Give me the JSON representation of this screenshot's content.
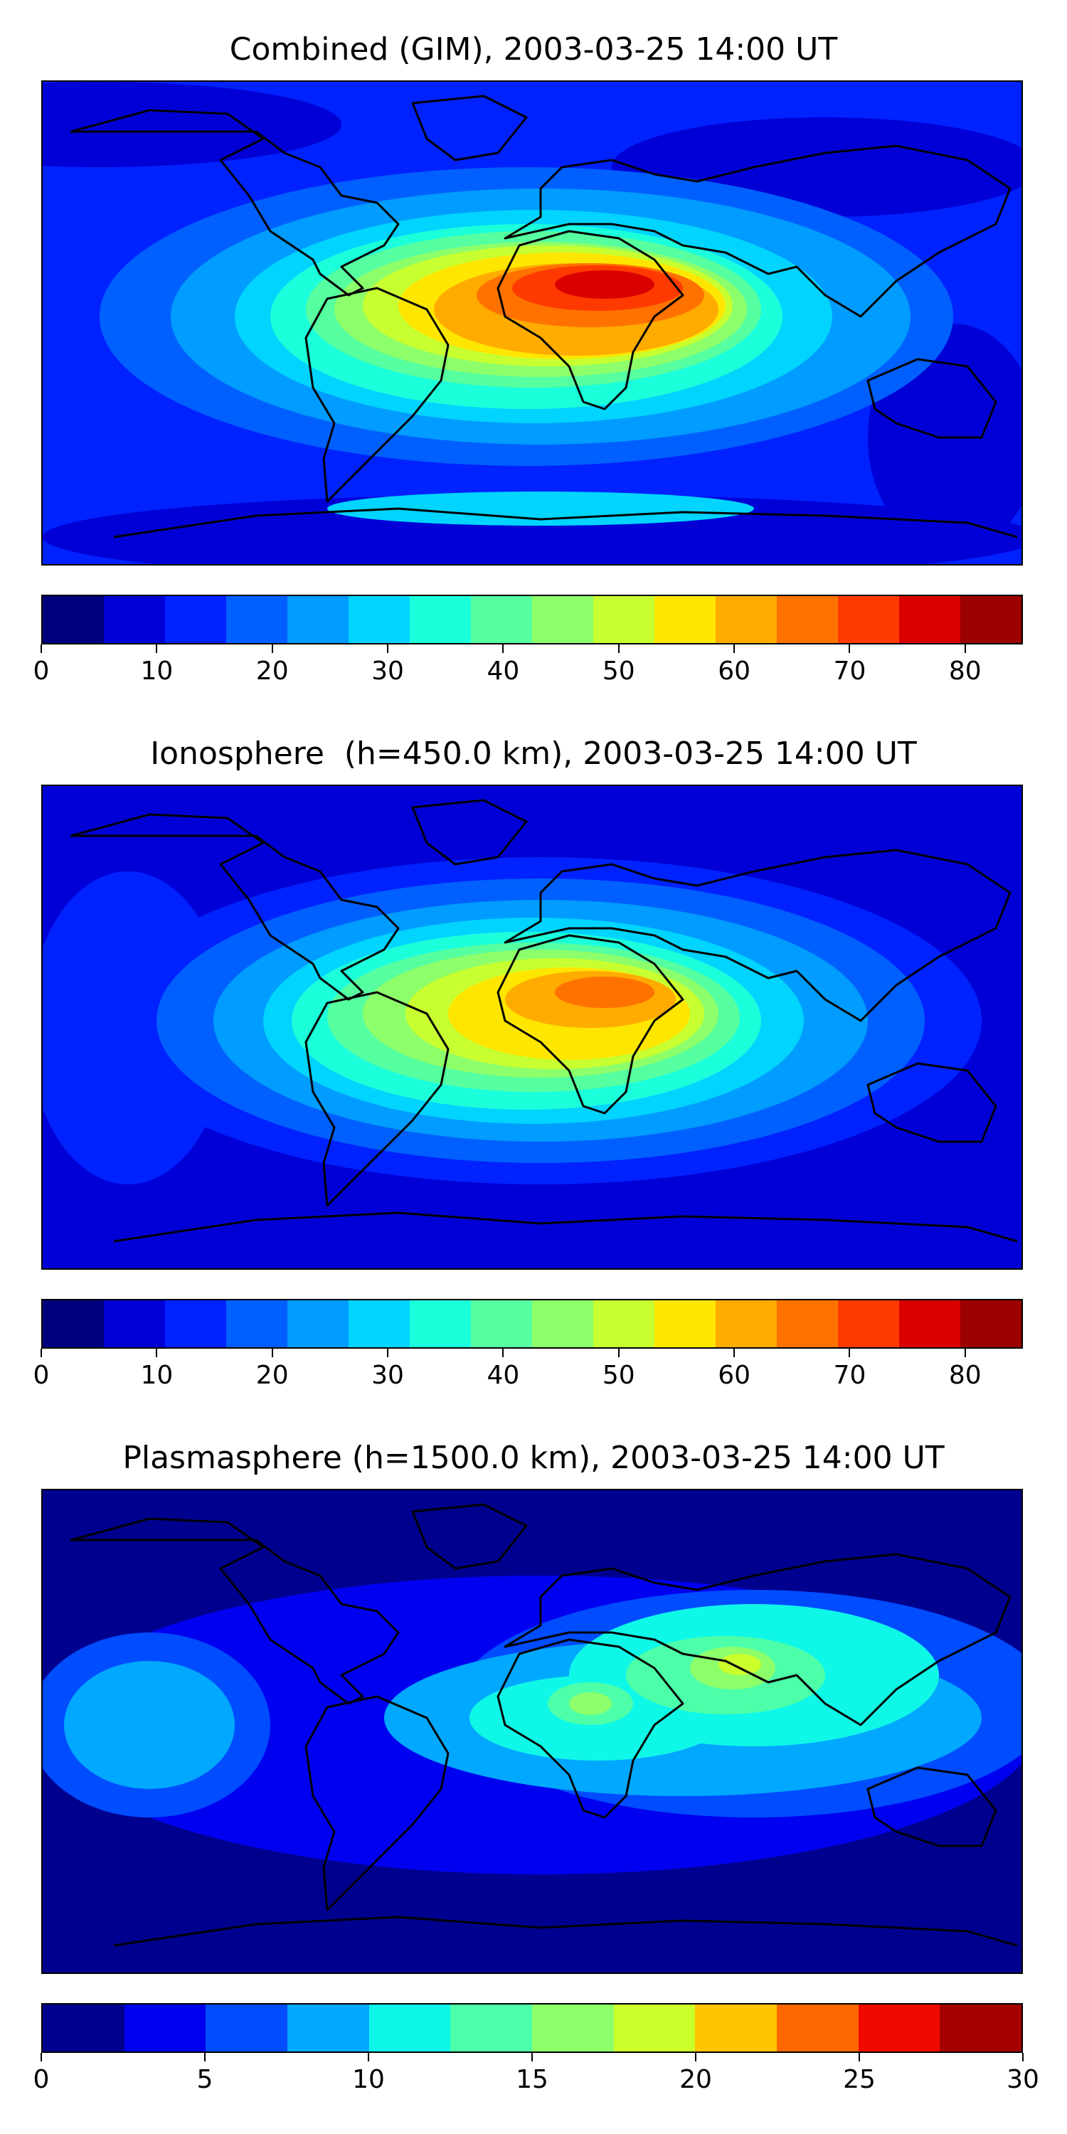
{
  "panels": [
    {
      "id": "combined",
      "title": "Combined (GIM), 2003-03-25 14:00 UT",
      "colorbar": {
        "min": 0,
        "max": 85,
        "step": 5,
        "ticks": [
          "0",
          "10",
          "20",
          "30",
          "40",
          "50",
          "60",
          "70",
          "80"
        ],
        "tick_values": [
          0,
          10,
          20,
          30,
          40,
          50,
          60,
          70,
          80
        ],
        "colors": [
          "#00007f",
          "#0000d6",
          "#0022ff",
          "#0060ff",
          "#009cff",
          "#00d4ff",
          "#1cffdb",
          "#56ffa0",
          "#8dff6a",
          "#c7ff30",
          "#ffe600",
          "#ffab00",
          "#ff7200",
          "#ff3a00",
          "#da0000",
          "#9d0000"
        ]
      }
    },
    {
      "id": "ionosphere",
      "title": "Ionosphere  (h=450.0 km), 2003-03-25 14:00 UT",
      "colorbar": {
        "min": 0,
        "max": 85,
        "step": 5,
        "ticks": [
          "0",
          "10",
          "20",
          "30",
          "40",
          "50",
          "60",
          "70",
          "80"
        ],
        "tick_values": [
          0,
          10,
          20,
          30,
          40,
          50,
          60,
          70,
          80
        ],
        "colors": [
          "#00007f",
          "#0000d6",
          "#0022ff",
          "#0060ff",
          "#009cff",
          "#00d4ff",
          "#1cffdb",
          "#56ffa0",
          "#8dff6a",
          "#c7ff30",
          "#ffe600",
          "#ffab00",
          "#ff7200",
          "#ff3a00",
          "#da0000",
          "#9d0000"
        ]
      }
    },
    {
      "id": "plasmasphere",
      "title": "Plasmasphere (h=1500.0 km), 2003-03-25 14:00 UT",
      "colorbar": {
        "min": 0,
        "max": 30,
        "step": 2.5,
        "ticks": [
          "0",
          "5",
          "10",
          "15",
          "20",
          "25",
          "30"
        ],
        "tick_values": [
          0,
          5,
          10,
          15,
          20,
          25,
          30
        ],
        "colors": [
          "#00008f",
          "#0000f1",
          "#004cff",
          "#00a8ff",
          "#0ff8e7",
          "#4dffa9",
          "#8dff6a",
          "#caff2c",
          "#ffc400",
          "#ff6800",
          "#f10800",
          "#a40000"
        ]
      }
    }
  ]
}
